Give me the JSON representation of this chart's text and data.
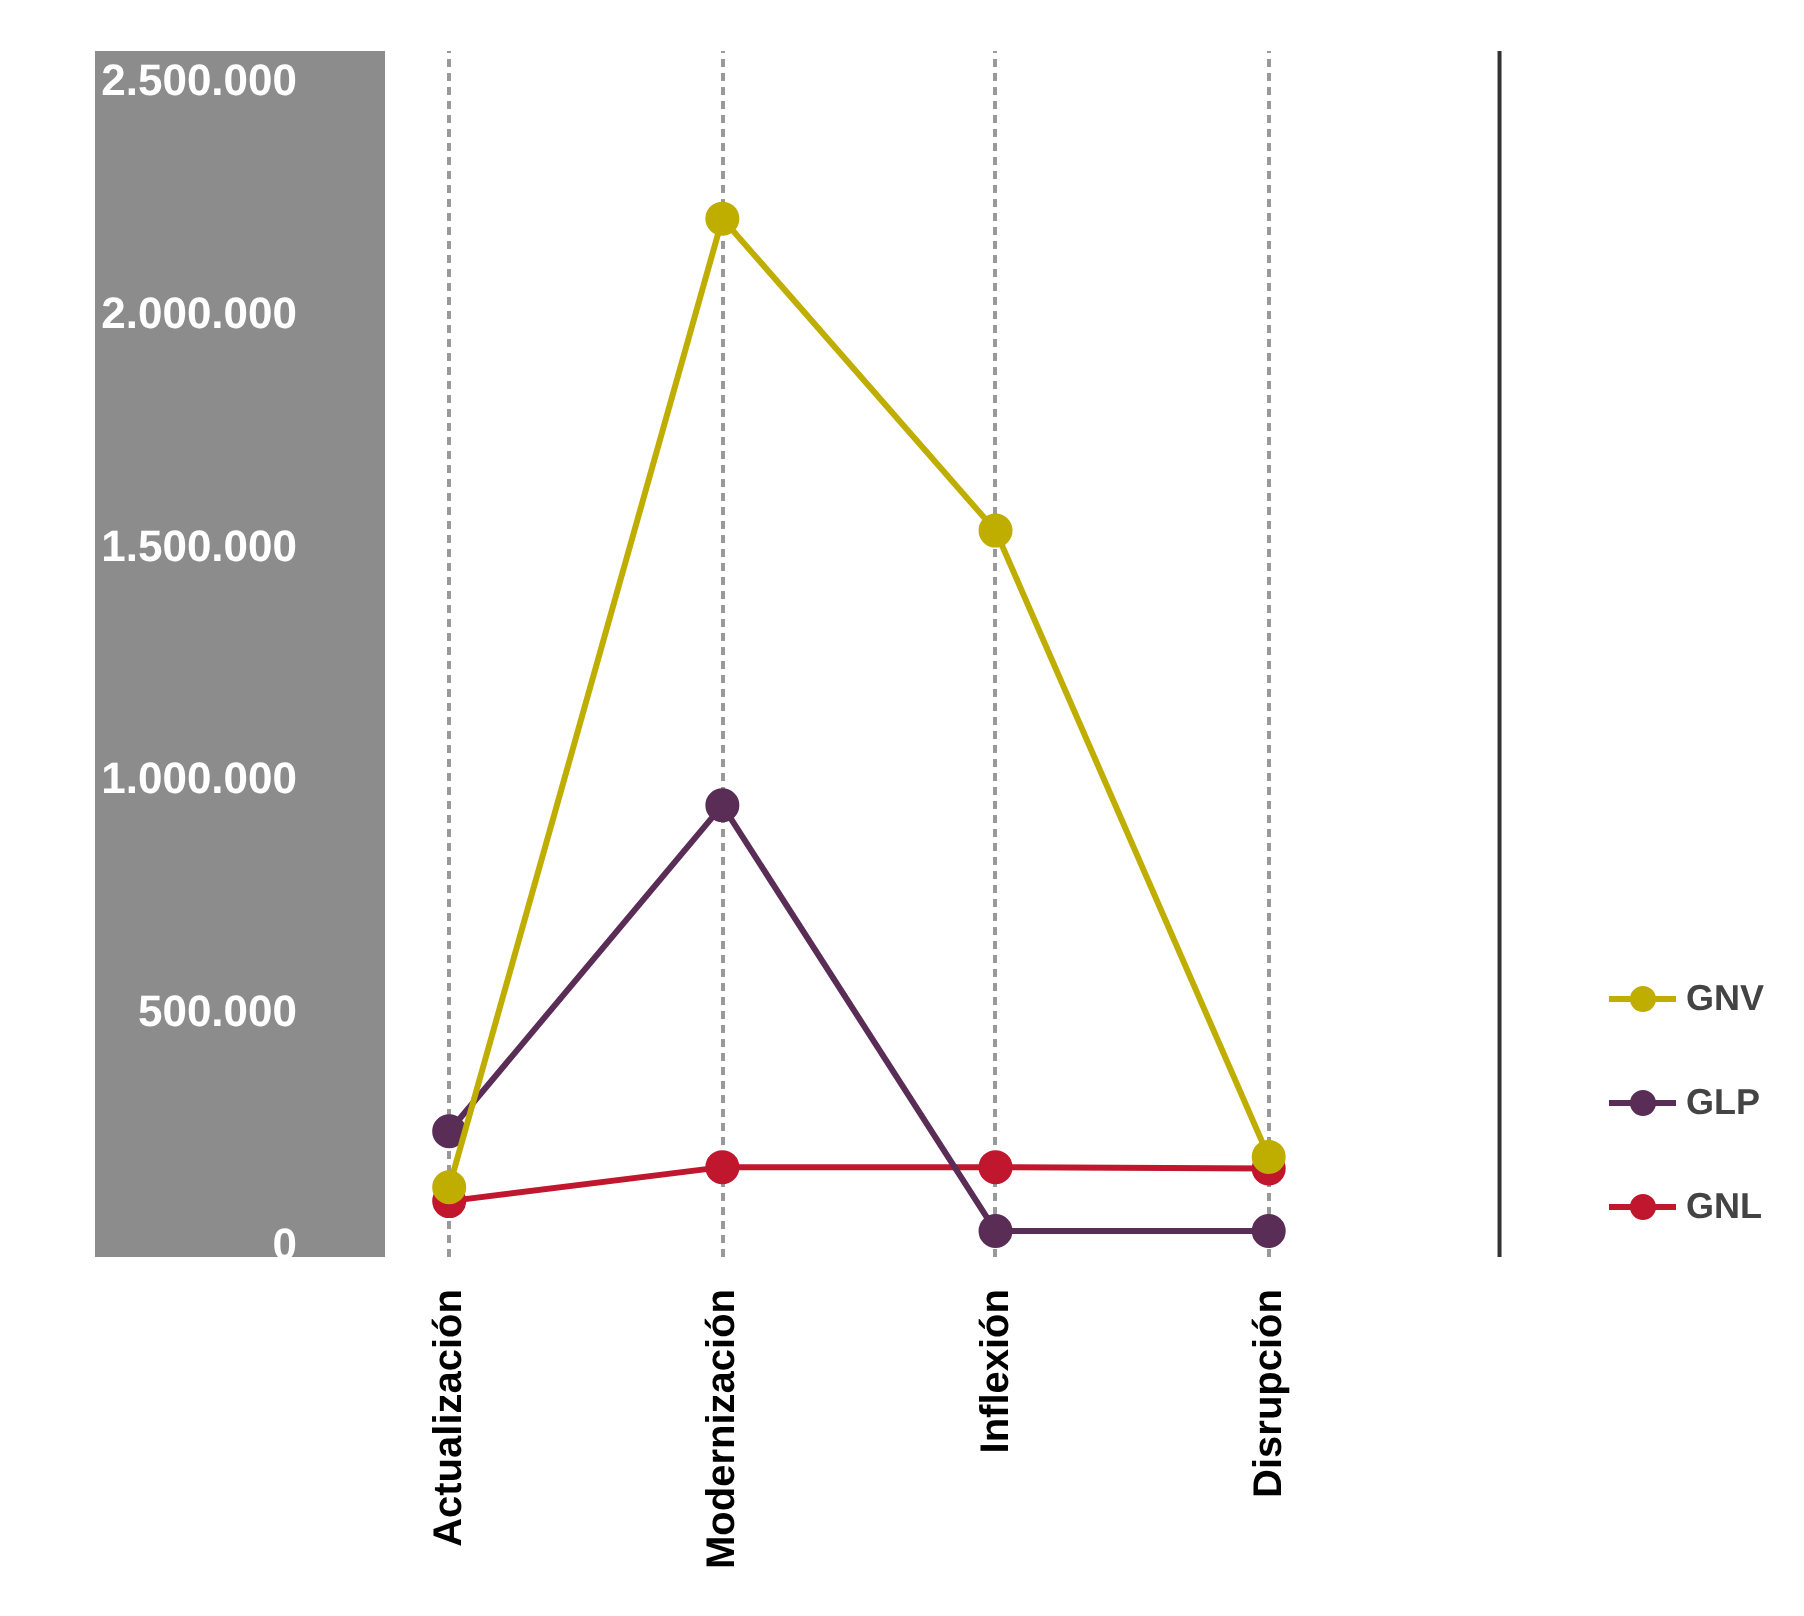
{
  "chart_data": {
    "type": "line",
    "categories": [
      "Actualización",
      "Modernización",
      "Inflexión",
      "Disrupción"
    ],
    "series": [
      {
        "name": "GNV",
        "color": "#bfae00",
        "values": [
          120000,
          2200000,
          1530000,
          185000
        ]
      },
      {
        "name": "GLP",
        "color": "#5a2d57",
        "values": [
          240000,
          940000,
          26000,
          26000
        ]
      },
      {
        "name": "GNL",
        "color": "#c0172e",
        "values": [
          90000,
          163000,
          163000,
          160000
        ]
      }
    ],
    "ylim": [
      -30000,
      2560000
    ],
    "yticks": [
      0,
      {
        "value": 500000,
        "label": "500.000"
      },
      {
        "value": 1000000,
        "label": "1.000.000"
      },
      {
        "value": 1500000,
        "label": "1.500.000"
      },
      {
        "value": 2000000,
        "label": "2.000.000"
      },
      {
        "value": 2500000,
        "label": "2.500.000"
      }
    ],
    "grid": "x",
    "legend": "bottom right",
    "marker": "circle",
    "line_style": "solid"
  }
}
